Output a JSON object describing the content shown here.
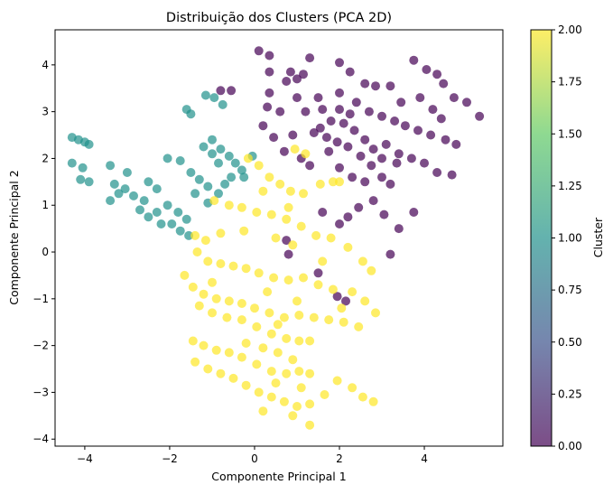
{
  "chart_data": {
    "type": "scatter",
    "title": "Distribuição dos Clusters (PCA 2D)",
    "xlabel": "Componente Principal 1",
    "ylabel": "Componente Principal 2",
    "xlim": [
      -4.7,
      5.85
    ],
    "ylim": [
      -4.15,
      4.75
    ],
    "xticks": [
      -4,
      -2,
      0,
      2,
      4
    ],
    "yticks": [
      -4,
      -3,
      -2,
      -1,
      0,
      1,
      2,
      3,
      4
    ],
    "x_tick_labels": [
      "−4",
      "−2",
      "0",
      "2",
      "4"
    ],
    "y_tick_labels": [
      "−4",
      "−3",
      "−2",
      "−1",
      "0",
      "1",
      "2",
      "3",
      "4"
    ],
    "grid": false,
    "marker_alpha": 0.7,
    "colorbar": {
      "label": "Cluster",
      "range": [
        0,
        2
      ],
      "colormap": "viridis",
      "ticks": [
        "0.00",
        "0.25",
        "0.50",
        "0.75",
        "1.00",
        "1.25",
        "1.50",
        "1.75",
        "2.00"
      ],
      "colors": [
        "#440154",
        "#3b528b",
        "#21918c",
        "#5ec962",
        "#fde725"
      ]
    },
    "series": [
      {
        "cluster": 0,
        "color": "#440154",
        "points": [
          [
            0.1,
            4.3
          ],
          [
            0.35,
            4.2
          ],
          [
            1.3,
            4.15
          ],
          [
            2.0,
            4.05
          ],
          [
            3.75,
            4.1
          ],
          [
            4.05,
            3.9
          ],
          [
            0.35,
            3.85
          ],
          [
            0.85,
            3.85
          ],
          [
            1.15,
            3.8
          ],
          [
            2.25,
            3.85
          ],
          [
            4.3,
            3.8
          ],
          [
            0.75,
            3.65
          ],
          [
            1.0,
            3.7
          ],
          [
            2.6,
            3.6
          ],
          [
            2.85,
            3.55
          ],
          [
            3.2,
            3.55
          ],
          [
            4.45,
            3.6
          ],
          [
            4.7,
            3.3
          ],
          [
            5.0,
            3.2
          ],
          [
            5.3,
            2.9
          ],
          [
            -0.8,
            3.45
          ],
          [
            -0.55,
            3.45
          ],
          [
            0.35,
            3.4
          ],
          [
            1.5,
            3.3
          ],
          [
            2.0,
            3.4
          ],
          [
            2.4,
            3.2
          ],
          [
            2.7,
            3.0
          ],
          [
            3.0,
            2.9
          ],
          [
            3.3,
            2.8
          ],
          [
            3.55,
            2.7
          ],
          [
            3.85,
            2.6
          ],
          [
            4.15,
            2.5
          ],
          [
            4.5,
            2.4
          ],
          [
            4.75,
            2.3
          ],
          [
            0.3,
            3.1
          ],
          [
            0.6,
            3.0
          ],
          [
            1.2,
            3.0
          ],
          [
            1.6,
            3.05
          ],
          [
            1.8,
            2.8
          ],
          [
            2.1,
            2.75
          ],
          [
            2.35,
            2.6
          ],
          [
            2.6,
            2.4
          ],
          [
            2.8,
            2.2
          ],
          [
            3.1,
            2.3
          ],
          [
            3.4,
            2.1
          ],
          [
            3.7,
            2.0
          ],
          [
            4.0,
            1.9
          ],
          [
            4.3,
            1.7
          ],
          [
            4.65,
            1.65
          ],
          [
            0.2,
            2.7
          ],
          [
            0.9,
            2.5
          ],
          [
            1.4,
            2.55
          ],
          [
            1.7,
            2.45
          ],
          [
            1.95,
            2.35
          ],
          [
            2.2,
            2.25
          ],
          [
            2.5,
            2.05
          ],
          [
            2.75,
            1.85
          ],
          [
            0.7,
            2.15
          ],
          [
            1.1,
            2.0
          ],
          [
            1.3,
            1.85
          ],
          [
            2.0,
            1.8
          ],
          [
            2.3,
            1.6
          ],
          [
            2.6,
            1.5
          ],
          [
            3.0,
            1.6
          ],
          [
            3.2,
            1.45
          ],
          [
            2.8,
            1.1
          ],
          [
            2.45,
            0.95
          ],
          [
            3.05,
            0.8
          ],
          [
            3.75,
            0.85
          ],
          [
            2.2,
            0.75
          ],
          [
            3.4,
            0.5
          ],
          [
            1.6,
            0.85
          ],
          [
            2.0,
            0.6
          ],
          [
            3.2,
            -0.05
          ],
          [
            0.75,
            0.25
          ],
          [
            0.8,
            -0.05
          ],
          [
            1.95,
            -0.95
          ],
          [
            2.15,
            -1.05
          ],
          [
            1.5,
            -0.45
          ],
          [
            3.9,
            3.3
          ],
          [
            4.2,
            3.05
          ],
          [
            4.4,
            2.85
          ],
          [
            3.45,
            3.2
          ],
          [
            1.0,
            3.3
          ],
          [
            1.55,
            2.65
          ],
          [
            3.0,
            2.0
          ],
          [
            3.35,
            1.9
          ],
          [
            2.0,
            3.05
          ],
          [
            2.25,
            2.95
          ],
          [
            1.75,
            2.15
          ],
          [
            0.45,
            2.45
          ]
        ]
      },
      {
        "cluster": 1,
        "color": "#21918c",
        "points": [
          [
            -4.3,
            2.45
          ],
          [
            -4.15,
            2.4
          ],
          [
            -4.0,
            2.35
          ],
          [
            -3.9,
            2.3
          ],
          [
            -4.3,
            1.9
          ],
          [
            -4.05,
            1.8
          ],
          [
            -4.1,
            1.55
          ],
          [
            -3.9,
            1.5
          ],
          [
            -3.4,
            1.85
          ],
          [
            -3.0,
            1.7
          ],
          [
            -3.3,
            1.45
          ],
          [
            -3.05,
            1.35
          ],
          [
            -2.85,
            1.2
          ],
          [
            -2.6,
            1.1
          ],
          [
            -3.4,
            1.1
          ],
          [
            -3.2,
            1.25
          ],
          [
            -2.5,
            1.5
          ],
          [
            -2.3,
            1.35
          ],
          [
            -2.7,
            0.9
          ],
          [
            -2.5,
            0.75
          ],
          [
            -2.3,
            0.85
          ],
          [
            -2.05,
            1.0
          ],
          [
            -1.8,
            0.85
          ],
          [
            -1.6,
            0.7
          ],
          [
            -1.95,
            0.6
          ],
          [
            -1.75,
            0.45
          ],
          [
            -1.55,
            0.35
          ],
          [
            -2.2,
            0.6
          ],
          [
            -2.05,
            2.0
          ],
          [
            -1.75,
            1.95
          ],
          [
            -1.5,
            1.7
          ],
          [
            -1.3,
            1.55
          ],
          [
            -1.1,
            1.4
          ],
          [
            -0.85,
            1.25
          ],
          [
            -1.4,
            1.25
          ],
          [
            -1.1,
            1.05
          ],
          [
            -1.2,
            2.25
          ],
          [
            -1.0,
            2.4
          ],
          [
            -0.8,
            2.2
          ],
          [
            -0.6,
            2.05
          ],
          [
            -0.45,
            1.9
          ],
          [
            -0.3,
            1.75
          ],
          [
            -0.55,
            1.6
          ],
          [
            -0.7,
            1.45
          ],
          [
            -0.25,
            1.6
          ],
          [
            -0.05,
            2.05
          ],
          [
            -1.6,
            3.05
          ],
          [
            -1.5,
            2.95
          ],
          [
            -1.15,
            3.35
          ],
          [
            -0.95,
            3.3
          ],
          [
            -0.75,
            3.15
          ],
          [
            -1.0,
            2.1
          ],
          [
            -0.85,
            1.9
          ]
        ]
      },
      {
        "cluster": 2,
        "color": "#fde725",
        "points": [
          [
            -0.15,
            2.0
          ],
          [
            0.1,
            1.85
          ],
          [
            0.35,
            1.6
          ],
          [
            0.6,
            1.45
          ],
          [
            0.85,
            1.3
          ],
          [
            1.15,
            1.25
          ],
          [
            1.55,
            1.45
          ],
          [
            1.85,
            1.5
          ],
          [
            2.0,
            1.5
          ],
          [
            0.95,
            2.2
          ],
          [
            1.2,
            2.1
          ],
          [
            -0.95,
            1.1
          ],
          [
            -0.6,
            1.0
          ],
          [
            -0.3,
            0.95
          ],
          [
            0.05,
            0.85
          ],
          [
            0.4,
            0.8
          ],
          [
            0.75,
            0.7
          ],
          [
            1.1,
            0.55
          ],
          [
            1.45,
            0.35
          ],
          [
            1.8,
            0.3
          ],
          [
            2.2,
            0.1
          ],
          [
            2.55,
            -0.2
          ],
          [
            2.75,
            -0.4
          ],
          [
            -1.4,
            0.35
          ],
          [
            -1.15,
            0.25
          ],
          [
            -1.35,
            0.0
          ],
          [
            -1.1,
            -0.2
          ],
          [
            -0.8,
            -0.25
          ],
          [
            -0.5,
            -0.3
          ],
          [
            -0.2,
            -0.35
          ],
          [
            0.1,
            -0.45
          ],
          [
            0.45,
            -0.55
          ],
          [
            0.8,
            -0.6
          ],
          [
            1.15,
            -0.55
          ],
          [
            1.5,
            -0.7
          ],
          [
            1.85,
            -0.8
          ],
          [
            2.3,
            -0.85
          ],
          [
            2.6,
            -1.05
          ],
          [
            2.85,
            -1.3
          ],
          [
            -1.65,
            -0.5
          ],
          [
            -1.45,
            -0.75
          ],
          [
            -1.2,
            -0.9
          ],
          [
            -0.9,
            -1.0
          ],
          [
            -0.6,
            -1.05
          ],
          [
            -0.3,
            -1.1
          ],
          [
            0.0,
            -1.2
          ],
          [
            0.35,
            -1.3
          ],
          [
            0.7,
            -1.4
          ],
          [
            1.05,
            -1.35
          ],
          [
            1.4,
            -1.4
          ],
          [
            1.75,
            -1.45
          ],
          [
            2.1,
            -1.5
          ],
          [
            2.45,
            -1.6
          ],
          [
            -1.3,
            -1.15
          ],
          [
            -1.0,
            -1.3
          ],
          [
            -0.65,
            -1.4
          ],
          [
            -0.3,
            -1.45
          ],
          [
            0.05,
            -1.6
          ],
          [
            0.4,
            -1.75
          ],
          [
            0.75,
            -1.85
          ],
          [
            1.05,
            -1.9
          ],
          [
            -0.2,
            -1.95
          ],
          [
            0.2,
            -2.05
          ],
          [
            0.55,
            -2.15
          ],
          [
            0.9,
            -2.3
          ],
          [
            -1.45,
            -1.9
          ],
          [
            -1.2,
            -2.0
          ],
          [
            -0.9,
            -2.1
          ],
          [
            -0.6,
            -2.15
          ],
          [
            -0.3,
            -2.25
          ],
          [
            0.05,
            -2.4
          ],
          [
            0.4,
            -2.55
          ],
          [
            0.75,
            -2.6
          ],
          [
            1.05,
            -2.55
          ],
          [
            1.3,
            -2.6
          ],
          [
            -1.4,
            -2.35
          ],
          [
            -1.1,
            -2.5
          ],
          [
            -0.8,
            -2.6
          ],
          [
            -0.5,
            -2.7
          ],
          [
            -0.2,
            -2.85
          ],
          [
            0.1,
            -3.0
          ],
          [
            0.4,
            -3.1
          ],
          [
            0.7,
            -3.2
          ],
          [
            1.0,
            -3.3
          ],
          [
            1.3,
            -3.25
          ],
          [
            1.65,
            -3.05
          ],
          [
            1.95,
            -2.75
          ],
          [
            2.3,
            -2.9
          ],
          [
            2.55,
            -3.1
          ],
          [
            2.8,
            -3.2
          ],
          [
            0.2,
            -3.4
          ],
          [
            0.9,
            -3.5
          ],
          [
            1.3,
            -3.7
          ],
          [
            0.5,
            -2.8
          ],
          [
            1.1,
            -2.9
          ],
          [
            0.8,
            0.95
          ],
          [
            0.2,
            1.3
          ],
          [
            0.5,
            0.3
          ],
          [
            -0.8,
            0.4
          ],
          [
            0.3,
            -0.85
          ],
          [
            1.0,
            -1.05
          ],
          [
            1.6,
            -0.2
          ],
          [
            2.05,
            -1.2
          ],
          [
            -0.25,
            0.45
          ],
          [
            0.9,
            0.15
          ],
          [
            0.55,
            -1.55
          ],
          [
            -1.0,
            -0.65
          ],
          [
            1.3,
            -1.9
          ]
        ]
      }
    ]
  }
}
